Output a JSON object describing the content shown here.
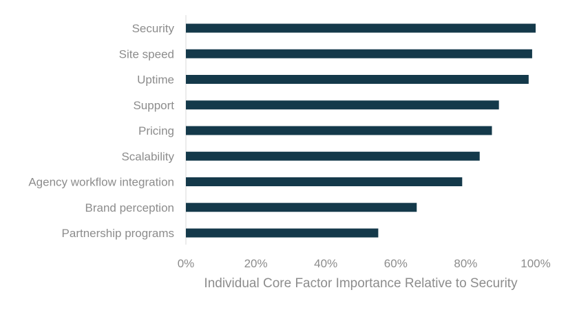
{
  "chart_data": {
    "type": "bar",
    "orientation": "horizontal",
    "categories": [
      "Security",
      "Site speed",
      "Uptime",
      "Support",
      "Pricing",
      "Scalability",
      "Agency workflow integration",
      "Brand perception",
      "Partnership programs"
    ],
    "values": [
      100,
      99,
      98,
      89.5,
      87.5,
      84,
      79,
      66,
      55
    ],
    "xlabel": "Individual Core Factor Importance Relative to Security",
    "ylabel": "",
    "xlim": [
      0,
      100
    ],
    "x_ticks": [
      "0%",
      "20%",
      "40%",
      "60%",
      "80%",
      "100%"
    ],
    "x_tick_values": [
      0,
      20,
      40,
      60,
      80,
      100
    ],
    "grid": false,
    "legend": "none",
    "colors": {
      "bar": "#14394a",
      "text": "#8c8c8c",
      "axis": "#d9d9d9"
    }
  }
}
